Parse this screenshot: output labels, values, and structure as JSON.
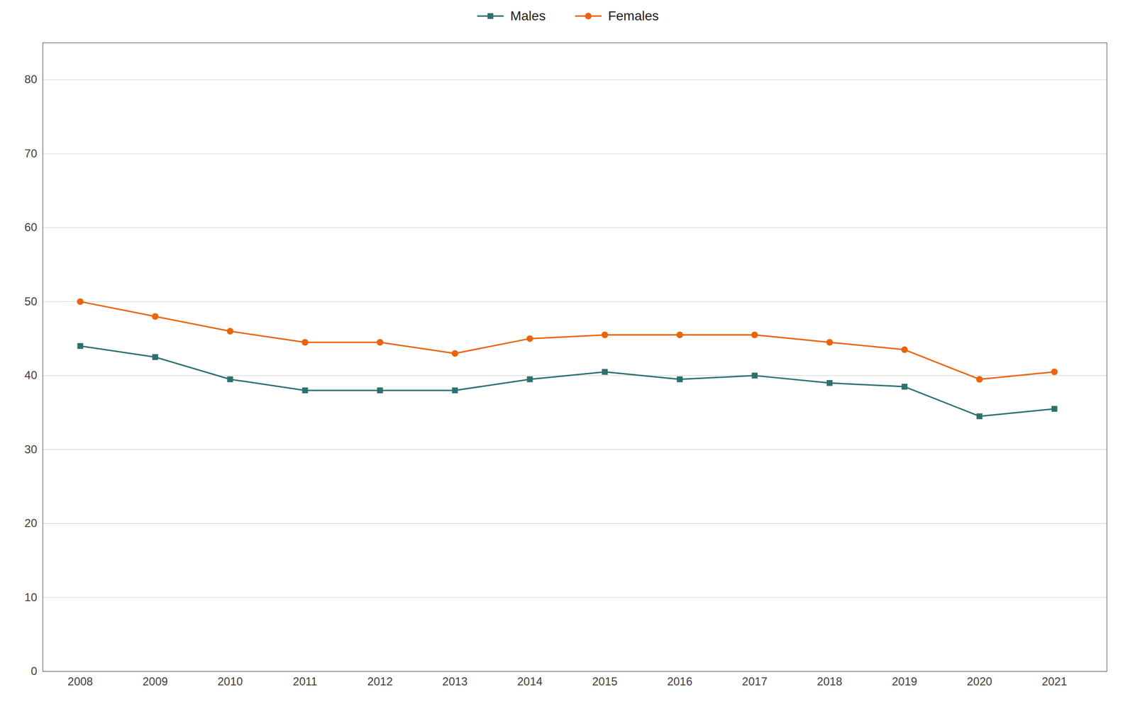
{
  "chart_data": {
    "type": "line",
    "x": [
      2008,
      2009,
      2010,
      2011,
      2012,
      2013,
      2014,
      2015,
      2016,
      2017,
      2018,
      2019,
      2020,
      2021
    ],
    "series": [
      {
        "name": "Males",
        "color": "#2E7070",
        "marker": "square",
        "line_style": "solid",
        "values": [
          44,
          42.5,
          39.5,
          38,
          38,
          38,
          39.5,
          40.5,
          39.5,
          40,
          39,
          38.5,
          34.5,
          35.5
        ]
      },
      {
        "name": "Females",
        "color": "#E8650A",
        "marker": "circle",
        "line_style": "solid",
        "values": [
          50,
          48,
          46,
          44.5,
          44.5,
          43,
          45,
          45.5,
          45.5,
          45.5,
          44.5,
          43.5,
          39.5,
          40.5
        ]
      }
    ],
    "xlim": [
      2007.5,
      2021.7
    ],
    "xticks": [
      2008,
      2009,
      2010,
      2011,
      2012,
      2013,
      2014,
      2015,
      2016,
      2017,
      2018,
      2019,
      2020,
      2021
    ],
    "ylim": [
      0,
      85
    ],
    "yticks": [
      0,
      10,
      20,
      30,
      40,
      50,
      60,
      70,
      80
    ],
    "grid": true,
    "legend": "top"
  }
}
